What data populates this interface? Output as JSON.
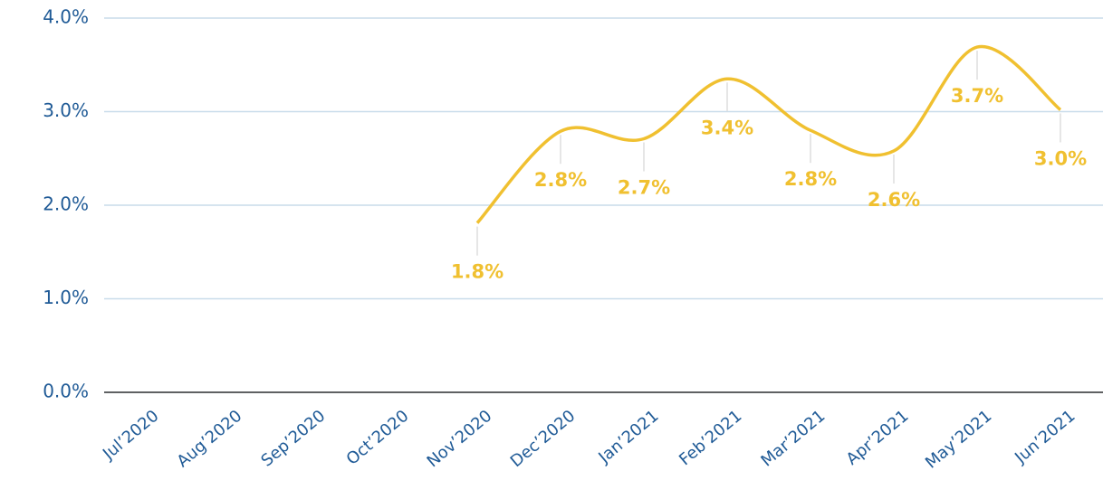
{
  "chart_data": {
    "type": "line",
    "categories": [
      "Jul’2020",
      "Aug’2020",
      "Sep’2020",
      "Oct’2020",
      "Nov’2020",
      "Dec’2020",
      "Jan’2021",
      "Feb’2021",
      "Mar’2021",
      "Apr’2021",
      "May’2021",
      "Jun’2021"
    ],
    "series": [
      {
        "color": "#f0c030",
        "values": [
          null,
          null,
          null,
          null,
          1.81,
          2.79,
          2.71,
          3.35,
          2.8,
          2.58,
          3.69,
          3.02
        ],
        "value_labels": [
          null,
          null,
          null,
          null,
          "1.8%",
          "2.8%",
          "2.7%",
          "3.4%",
          "2.8%",
          "2.6%",
          "3.7%",
          "3.0%"
        ]
      }
    ],
    "ylim": [
      0,
      4
    ],
    "yticks": [
      {
        "value": 0,
        "label": "0.0%"
      },
      {
        "value": 1,
        "label": "1.0%"
      },
      {
        "value": 2,
        "label": "2.0%"
      },
      {
        "value": 3,
        "label": "3.0%"
      },
      {
        "value": 4,
        "label": "4.0%"
      }
    ],
    "grid": true
  }
}
